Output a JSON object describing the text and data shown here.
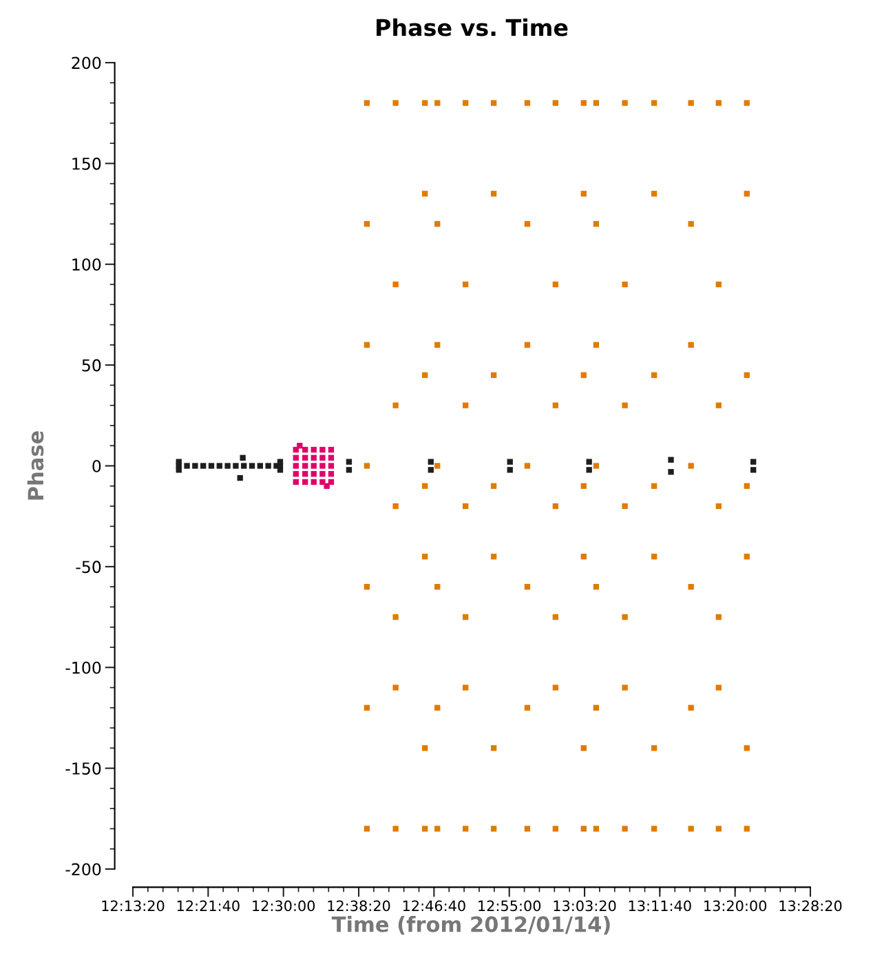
{
  "chart_data": {
    "type": "scatter",
    "title": "Phase vs. Time",
    "xlabel": "Time (from 2012/01/14)",
    "ylabel": "Phase",
    "xlim": [
      12.2222,
      13.4722
    ],
    "xticks": [
      {
        "value": 12.2222,
        "label": "12:13:20"
      },
      {
        "value": 12.3611,
        "label": "12:21:40"
      },
      {
        "value": 12.5,
        "label": "12:30:00"
      },
      {
        "value": 12.6389,
        "label": "12:38:20"
      },
      {
        "value": 12.7778,
        "label": "12:46:40"
      },
      {
        "value": 12.9167,
        "label": "12:55:00"
      },
      {
        "value": 13.0556,
        "label": "13:03:20"
      },
      {
        "value": 13.1944,
        "label": "13:11:40"
      },
      {
        "value": 13.3333,
        "label": "13:20:00"
      },
      {
        "value": 13.4722,
        "label": "13:28:20"
      }
    ],
    "ylim": [
      -200,
      200
    ],
    "yticks": [
      -200,
      -150,
      -100,
      -50,
      0,
      50,
      100,
      150,
      200
    ],
    "grid": false,
    "marker": "square",
    "series": [
      {
        "color": "#1e1e1e",
        "x": [
          12.307,
          12.322,
          12.337,
          12.352,
          12.367,
          12.382,
          12.397,
          12.412,
          12.427,
          12.442,
          12.457,
          12.472,
          12.487,
          12.494,
          12.307,
          12.494,
          12.307,
          12.494,
          12.42,
          12.425,
          12.621,
          12.621,
          12.772,
          12.772,
          12.918,
          12.918,
          13.064,
          13.064,
          13.215,
          13.215,
          13.367,
          13.367
        ],
        "values": [
          0,
          0,
          0,
          0,
          0,
          0,
          0,
          0,
          0,
          0,
          0,
          0,
          0,
          0,
          -2,
          -2,
          2,
          2,
          -6,
          4,
          -2,
          2,
          -2,
          2,
          -2,
          2,
          -2,
          2,
          -3,
          3,
          -2,
          2
        ]
      },
      {
        "color": "#e0006a",
        "x": [
          12.523,
          12.54,
          12.556,
          12.572,
          12.588,
          12.523,
          12.54,
          12.556,
          12.572,
          12.588,
          12.523,
          12.54,
          12.556,
          12.572,
          12.588,
          12.523,
          12.54,
          12.556,
          12.572,
          12.588,
          12.523,
          12.54,
          12.556,
          12.572,
          12.588,
          12.53,
          12.58
        ],
        "values": [
          -8,
          -8,
          -8,
          -8,
          -8,
          -4,
          -4,
          -4,
          -4,
          -4,
          0,
          0,
          0,
          0,
          0,
          4,
          4,
          4,
          4,
          4,
          8,
          8,
          8,
          8,
          8,
          10,
          -10
        ]
      },
      {
        "color": "#e07b00",
        "x": [
          12.654,
          12.707,
          12.761,
          12.654,
          12.707,
          12.761,
          12.654,
          12.707,
          12.761,
          12.654,
          12.707,
          12.761,
          12.654,
          12.707,
          12.761,
          12.654,
          12.707,
          12.761,
          12.654,
          12.707,
          12.761,
          12.784,
          12.836,
          12.888,
          12.784,
          12.836,
          12.888,
          12.784,
          12.836,
          12.888,
          12.784,
          12.836,
          12.888,
          12.784,
          12.836,
          12.888,
          12.784,
          12.836,
          12.888,
          12.784,
          12.836,
          12.888,
          12.95,
          13.002,
          13.054,
          12.95,
          13.002,
          13.054,
          12.95,
          13.002,
          13.054,
          12.95,
          13.002,
          13.054,
          12.95,
          13.002,
          13.054,
          12.95,
          13.002,
          13.054,
          12.95,
          13.002,
          13.054,
          13.077,
          13.13,
          13.184,
          13.077,
          13.13,
          13.184,
          13.077,
          13.13,
          13.184,
          13.077,
          13.13,
          13.184,
          13.077,
          13.13,
          13.184,
          13.077,
          13.13,
          13.184,
          13.077,
          13.13,
          13.184,
          13.252,
          13.303,
          13.355,
          13.252,
          13.303,
          13.355,
          13.252,
          13.303,
          13.355,
          13.252,
          13.303,
          13.355,
          13.252,
          13.303,
          13.355,
          13.252,
          13.303,
          13.355,
          13.252,
          13.303,
          13.355
        ],
        "values": [
          180,
          180,
          180,
          120,
          90,
          135,
          60,
          30,
          45,
          0,
          -20,
          -10,
          -60,
          -75,
          -45,
          -120,
          -110,
          -140,
          -180,
          -180,
          -180,
          180,
          180,
          180,
          120,
          90,
          135,
          60,
          30,
          45,
          0,
          -20,
          -10,
          -60,
          -75,
          -45,
          -120,
          -110,
          -140,
          -180,
          -180,
          -180,
          180,
          180,
          180,
          120,
          90,
          135,
          60,
          30,
          45,
          0,
          -20,
          -10,
          -60,
          -75,
          -45,
          -120,
          -110,
          -140,
          -180,
          -180,
          -180,
          180,
          180,
          180,
          120,
          90,
          135,
          60,
          30,
          45,
          0,
          -20,
          -10,
          -60,
          -75,
          -45,
          -120,
          -110,
          -140,
          -180,
          -180,
          -180,
          180,
          180,
          180,
          120,
          90,
          135,
          60,
          30,
          45,
          0,
          -20,
          -10,
          -60,
          -75,
          -45,
          -120,
          -110,
          -140,
          -180,
          -180,
          -180
        ]
      }
    ]
  }
}
